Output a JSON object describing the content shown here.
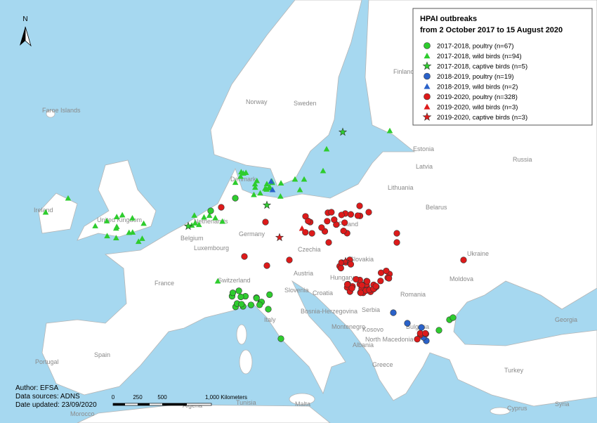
{
  "legend": {
    "title": [
      "HPAI outbreaks",
      "from 2 October 2017 to 15 August 2020"
    ],
    "entries": [
      "2017-2018, poultry (n=67)",
      "2017-2018, wild birds (n=94)",
      "2017-2018, captive birds (n=5)",
      "2018-2019, poultry (n=19)",
      "2018-2019, wild birds (n=2)",
      "2019-2020, poultry (n=328)",
      "2019-2020, wild birds (n=3)",
      "2019-2020, captive birds (n=3)"
    ]
  },
  "north": "N",
  "countries": [
    "Faroe Islands",
    "Norway",
    "Sweden",
    "Finland",
    "Estonia",
    "Russia",
    "Latvia",
    "Denmark",
    "Lithuania",
    "Ireland",
    "United Kingdom",
    "Netherlands",
    "Belarus",
    "Germany",
    "Poland",
    "Belgium",
    "Luxembourg",
    "Czechia",
    "Slovakia",
    "Ukraine",
    "France",
    "Austria",
    "Switzerland",
    "Hungary",
    "Moldova",
    "Slovenia",
    "Croatia",
    "Romania",
    "Bosnia-Herzegovina",
    "Serbia",
    "Italy",
    "Montenegro",
    "Kosovo",
    "Bulgaria",
    "Georgia",
    "North Macedonia",
    "Albania",
    "Spain",
    "Portugal",
    "Greece",
    "Turkey",
    "Algeria",
    "Tunisia",
    "Malta",
    "Morocco",
    "Cyprus",
    "Syria"
  ],
  "footer": [
    "Author: EFSA",
    "Data sources: ADNS",
    "Date updated: 23/09/2020"
  ],
  "scale": [
    "0",
    "250",
    "500",
    "1,000 Kilometers"
  ]
}
